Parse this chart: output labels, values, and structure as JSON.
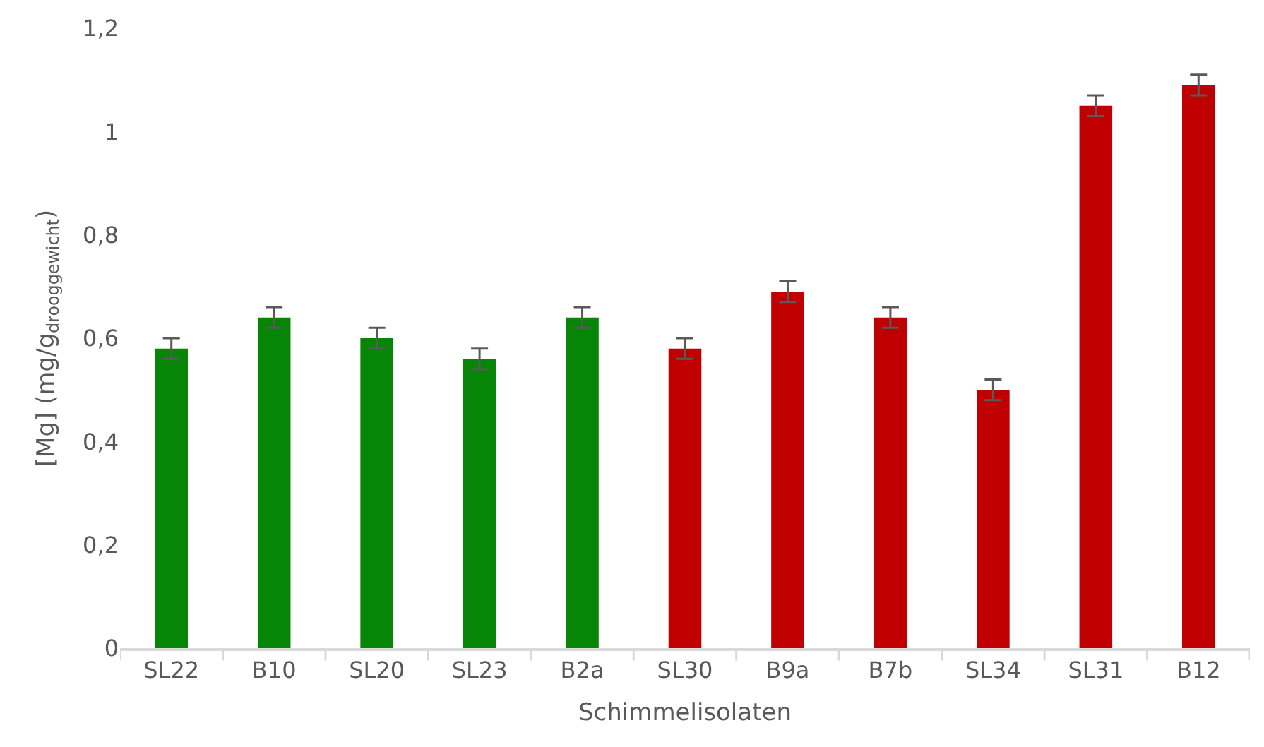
{
  "chart_data": {
    "type": "bar",
    "xlabel": "Schimmelisolaten",
    "ylabel": "[Mg] (mg/g$_{drooggewicht}$)",
    "categories": [
      "SL22",
      "B10",
      "SL20",
      "SL23",
      "B2a",
      "SL30",
      "B9a",
      "B7b",
      "SL34",
      "SL31",
      "B12"
    ],
    "values": [
      0.58,
      0.64,
      0.6,
      0.56,
      0.64,
      0.58,
      0.69,
      0.64,
      0.5,
      1.05,
      1.09
    ],
    "colors": [
      "#078507",
      "#078507",
      "#078507",
      "#078507",
      "#078507",
      "#c00000",
      "#c00000",
      "#c00000",
      "#c00000",
      "#c00000",
      "#c00000"
    ],
    "errors": [
      0.02,
      0.02,
      0.02,
      0.02,
      0.02,
      0.02,
      0.02,
      0.02,
      0.02,
      0.02,
      0.02
    ],
    "ylim": [
      0,
      1.2
    ],
    "yticks": [
      0,
      {
        "value": 0.2,
        "label": "0,2"
      },
      {
        "value": 0.4,
        "label": "0,4"
      },
      {
        "value": 0.6,
        "label": "0,6"
      },
      {
        "value": 0.8,
        "label": "0,8"
      },
      1,
      {
        "value": 1.2,
        "label": "1,2"
      }
    ],
    "grid": false
  }
}
